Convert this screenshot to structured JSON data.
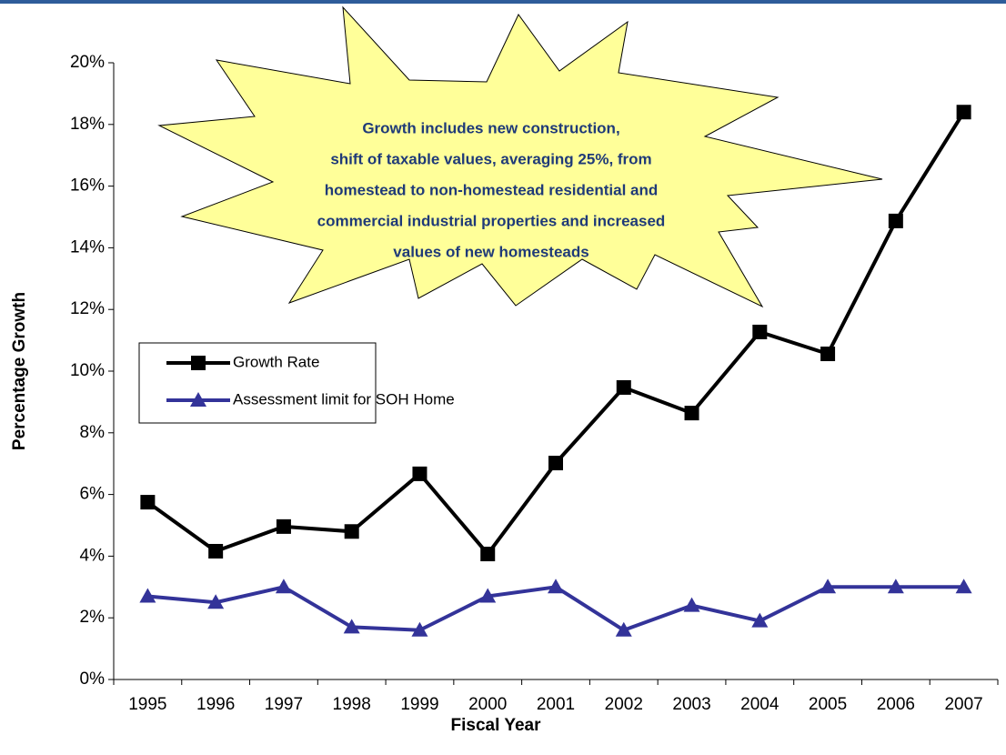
{
  "chart_data": {
    "type": "line",
    "annotation": [
      "Growth includes new construction,",
      "shift of taxable values, averaging 25%, from",
      "homestead to non-homestead residential and",
      "commercial industrial properties and increased",
      "values of new homesteads"
    ],
    "x_label": "Fiscal Year",
    "y_label": "Percentage Growth",
    "categories": [
      "1995",
      "1996",
      "1997",
      "1998",
      "1999",
      "2000",
      "2001",
      "2002",
      "2003",
      "2004",
      "2005",
      "2006",
      "2007"
    ],
    "series": [
      {
        "name": "Growth Rate",
        "color": "#000000",
        "marker": "square",
        "values": [
          5.75,
          4.16,
          4.96,
          4.8,
          6.67,
          4.07,
          7.02,
          9.47,
          8.64,
          11.27,
          10.56,
          14.87,
          18.4
        ]
      },
      {
        "name": "Assessment limit for SOH Home",
        "color": "#333399",
        "marker": "triangle",
        "values": [
          2.7,
          2.5,
          3.0,
          1.7,
          1.6,
          2.7,
          3.0,
          1.6,
          2.4,
          1.9,
          3.0,
          3.0,
          3.0
        ]
      }
    ],
    "ylim": [
      0,
      20
    ],
    "yticks": [
      {
        "value": 0,
        "label": "0%"
      },
      {
        "value": 2,
        "label": "2%"
      },
      {
        "value": 4,
        "label": "4%"
      },
      {
        "value": 6,
        "label": "6%"
      },
      {
        "value": 8,
        "label": "8%"
      },
      {
        "value": 10,
        "label": "10%"
      },
      {
        "value": 12,
        "label": "12%"
      },
      {
        "value": 14,
        "label": "14%"
      },
      {
        "value": 16,
        "label": "16%"
      },
      {
        "value": 18,
        "label": "18%"
      },
      {
        "value": 20,
        "label": "20%"
      }
    ],
    "grid": false
  }
}
